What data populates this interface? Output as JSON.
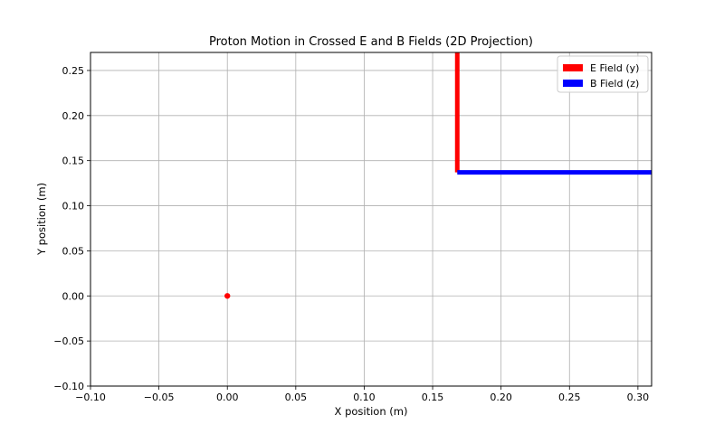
{
  "chart_data": {
    "type": "line",
    "title": "Proton Motion in Crossed E and B Fields (2D Projection)",
    "xlabel": "X position (m)",
    "ylabel": "Y position (m)",
    "xlim": [
      -0.1,
      0.31
    ],
    "ylim": [
      -0.1,
      0.27
    ],
    "xticks": [
      -0.1,
      -0.05,
      0.0,
      0.05,
      0.1,
      0.15,
      0.2,
      0.25,
      0.3
    ],
    "xtick_labels": [
      "−0.10",
      "−0.05",
      "0.00",
      "0.05",
      "0.10",
      "0.15",
      "0.20",
      "0.25",
      "0.30"
    ],
    "yticks": [
      -0.1,
      -0.05,
      0.0,
      0.05,
      0.1,
      0.15,
      0.2,
      0.25
    ],
    "ytick_labels": [
      "−0.10",
      "−0.05",
      "0.00",
      "0.05",
      "0.10",
      "0.15",
      "0.20",
      "0.25"
    ],
    "grid": true,
    "legend_position": "top-right",
    "series": [
      {
        "name": "E Field (y)",
        "color": "#ff0000",
        "x": [
          0.168,
          0.168
        ],
        "y": [
          0.137,
          0.27
        ]
      },
      {
        "name": "B Field (z)",
        "color": "#0000ff",
        "x": [
          0.168,
          0.31
        ],
        "y": [
          0.137,
          0.137
        ]
      }
    ],
    "points": [
      {
        "x": 0.0,
        "y": 0.0,
        "color": "#ff0000"
      }
    ]
  }
}
